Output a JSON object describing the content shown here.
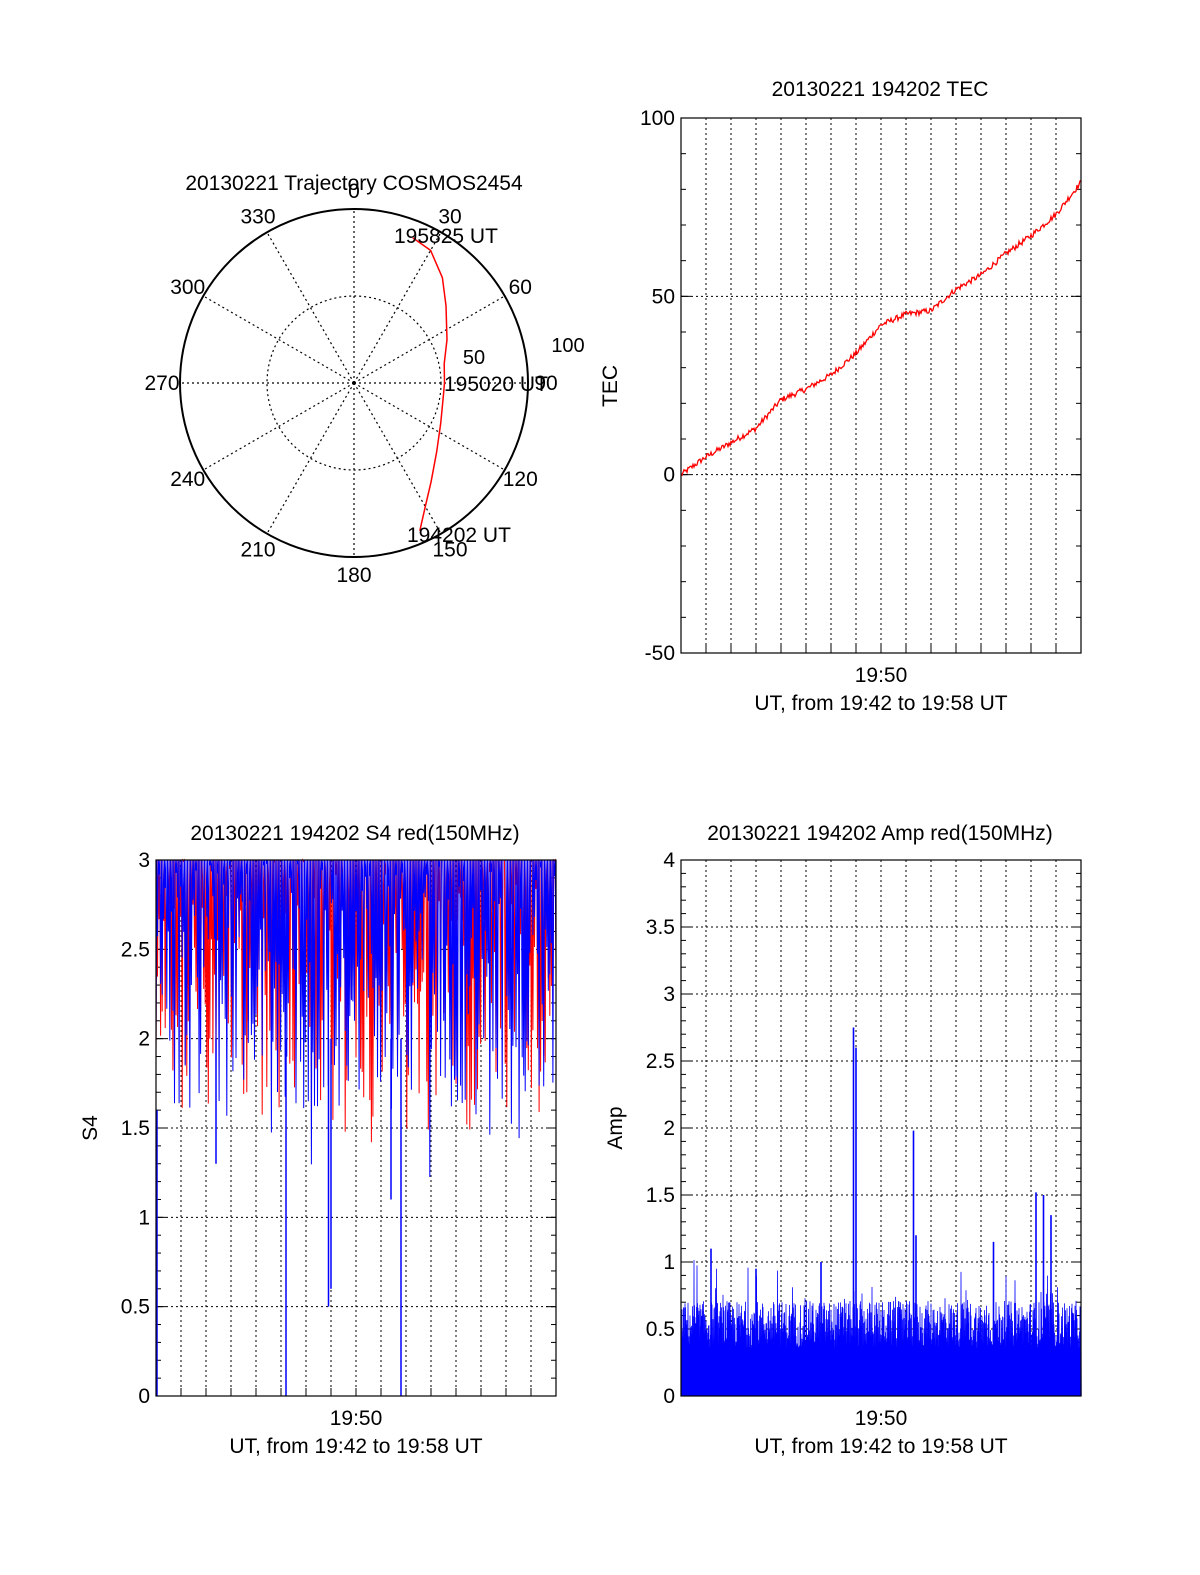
{
  "chart_data": [
    {
      "type": "polar",
      "title": "20130221 Trajectory COSMOS2454",
      "angle_labels": [
        "0",
        "30",
        "60",
        "90",
        "120",
        "150",
        "180",
        "210",
        "240",
        "270",
        "300",
        "330"
      ],
      "radius_labels": [
        "50",
        "100"
      ],
      "rlim": [
        0,
        100
      ],
      "series": [
        {
          "color": "#ff0000",
          "points": [
            {
              "az": 156,
              "zen": 93
            },
            {
              "az": 150,
              "zen": 82
            },
            {
              "az": 142,
              "zen": 72
            },
            {
              "az": 130,
              "zen": 62
            },
            {
              "az": 115,
              "zen": 55
            },
            {
              "az": 100,
              "zen": 52
            },
            {
              "az": 90,
              "zen": 52
            },
            {
              "az": 78,
              "zen": 53
            },
            {
              "az": 65,
              "zen": 59
            },
            {
              "az": 50,
              "zen": 69
            },
            {
              "az": 40,
              "zen": 79
            },
            {
              "az": 30,
              "zen": 88
            },
            {
              "az": 22,
              "zen": 90
            }
          ]
        }
      ],
      "annotations": [
        {
          "text": "195825 UT",
          "az": 22,
          "zen": 90
        },
        {
          "text": "195020 UT",
          "az": 90,
          "zen": 52
        },
        {
          "text": "194202 UT",
          "az": 156,
          "zen": 93
        }
      ]
    },
    {
      "type": "line",
      "title": "20130221 194202 TEC",
      "ylabel": "TEC",
      "xlabel": "UT, from 19:42 to 19:58 UT",
      "xtick_label": "19:50",
      "xlim_min": [
        0,
        16
      ],
      "ylim": [
        -50,
        100
      ],
      "yticks": [
        "-50",
        "0",
        "50",
        "100"
      ],
      "grid": true,
      "series": [
        {
          "color": "#ff0000",
          "x": [
            0,
            1,
            2,
            3,
            4,
            5,
            6,
            7,
            8,
            9,
            10,
            11,
            12,
            13,
            14,
            15,
            16
          ],
          "y": [
            0,
            5,
            9,
            13,
            21,
            24,
            28,
            34,
            42,
            45,
            46,
            52,
            56,
            62,
            67,
            73,
            82
          ]
        }
      ]
    },
    {
      "type": "line",
      "title": "20130221 194202 S4 red(150MHz)",
      "ylabel": "S4",
      "xlabel": "UT, from 19:42 to 19:58 UT",
      "xtick_label": "19:50",
      "xlim_min": [
        0,
        16
      ],
      "ylim": [
        0,
        3
      ],
      "yticks": [
        "0",
        "0.5",
        "1",
        "1.5",
        "2",
        "2.5",
        "3"
      ],
      "grid": true,
      "series": [
        {
          "color": "#ff0000",
          "band_low": 1.9,
          "band_high": 3.0
        },
        {
          "color": "#0000ff",
          "band_low": 1.6,
          "band_high": 3.0
        },
        {
          "color": "#0000ff",
          "dips": [
            [
              5.2,
              0.0
            ],
            [
              6.9,
              0.5
            ],
            [
              7.0,
              0.6
            ],
            [
              9.4,
              1.1
            ],
            [
              9.8,
              0.0
            ],
            [
              2.4,
              1.3
            ]
          ]
        }
      ]
    },
    {
      "type": "line",
      "title": "20130221 194202 Amp red(150MHz)",
      "ylabel": "Amp",
      "xlabel": "UT, from 19:42 to 19:58 UT",
      "xtick_label": "19:50",
      "xlim_min": [
        0,
        16
      ],
      "ylim": [
        0,
        4
      ],
      "yticks": [
        "0",
        "0.5",
        "1",
        "1.5",
        "2",
        "2.5",
        "3",
        "3.5",
        "4"
      ],
      "grid": true,
      "series": [
        {
          "color": "#0000ff",
          "base": 0.5,
          "spikes": [
            [
              6.9,
              2.75
            ],
            [
              7.0,
              2.6
            ],
            [
              9.3,
              1.98
            ],
            [
              9.4,
              1.2
            ],
            [
              1.2,
              1.1
            ],
            [
              14.2,
              1.52
            ],
            [
              14.5,
              1.5
            ],
            [
              14.8,
              1.35
            ],
            [
              12.5,
              1.15
            ],
            [
              3.0,
              0.95
            ],
            [
              5.6,
              1.0
            ]
          ]
        }
      ]
    }
  ]
}
